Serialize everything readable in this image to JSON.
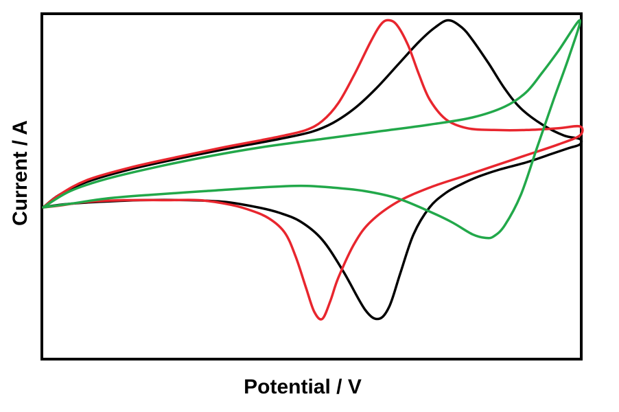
{
  "chart_data": {
    "type": "line",
    "title": "",
    "xlabel": "Potential / V",
    "ylabel": "Current / A",
    "xlim": [
      0,
      1
    ],
    "ylim": [
      -1,
      1
    ],
    "grid": false,
    "legend": "none",
    "series": [
      {
        "color": "#000000",
        "x": [
          0.0,
          0.03,
          0.08,
          0.16,
          0.25,
          0.35,
          0.44,
          0.5,
          0.54,
          0.58,
          0.62,
          0.66,
          0.7,
          0.73,
          0.755,
          0.78,
          0.8,
          0.83,
          0.86,
          0.89,
          0.93,
          0.97,
          1.0,
          1.0,
          0.98,
          0.95,
          0.9,
          0.85,
          0.81,
          0.78,
          0.75,
          0.72,
          0.69,
          0.665,
          0.645,
          0.625,
          0.6,
          0.56,
          0.52,
          0.48,
          0.44,
          0.4,
          0.34,
          0.27,
          0.18,
          0.1,
          0.05,
          0.02,
          0.0
        ],
        "y": [
          0.0,
          0.07,
          0.14,
          0.21,
          0.27,
          0.33,
          0.38,
          0.42,
          0.47,
          0.55,
          0.66,
          0.79,
          0.92,
          1.0,
          1.04,
          1.0,
          0.93,
          0.8,
          0.66,
          0.55,
          0.46,
          0.4,
          0.38,
          0.35,
          0.33,
          0.3,
          0.25,
          0.21,
          0.17,
          0.13,
          0.08,
          0.0,
          -0.15,
          -0.37,
          -0.55,
          -0.62,
          -0.57,
          -0.36,
          -0.18,
          -0.08,
          -0.03,
          0.0,
          0.03,
          0.04,
          0.04,
          0.03,
          0.02,
          0.01,
          0.0
        ]
      },
      {
        "color": "#e8262e",
        "x": [
          0.0,
          0.03,
          0.08,
          0.16,
          0.25,
          0.33,
          0.4,
          0.45,
          0.49,
          0.52,
          0.55,
          0.58,
          0.61,
          0.63,
          0.645,
          0.66,
          0.68,
          0.7,
          0.72,
          0.75,
          0.79,
          0.84,
          0.9,
          0.96,
          1.0,
          1.0,
          0.96,
          0.9,
          0.84,
          0.78,
          0.72,
          0.66,
          0.61,
          0.58,
          0.55,
          0.535,
          0.52,
          0.505,
          0.49,
          0.47,
          0.45,
          0.42,
          0.38,
          0.34,
          0.29,
          0.23,
          0.15,
          0.08,
          0.03,
          0.0
        ],
        "y": [
          0.0,
          0.07,
          0.15,
          0.22,
          0.28,
          0.33,
          0.37,
          0.4,
          0.43,
          0.48,
          0.58,
          0.74,
          0.92,
          1.02,
          1.04,
          1.01,
          0.9,
          0.74,
          0.6,
          0.49,
          0.44,
          0.43,
          0.43,
          0.44,
          0.45,
          0.4,
          0.35,
          0.29,
          0.23,
          0.17,
          0.11,
          0.03,
          -0.08,
          -0.2,
          -0.39,
          -0.52,
          -0.62,
          -0.58,
          -0.45,
          -0.27,
          -0.14,
          -0.06,
          -0.01,
          0.02,
          0.04,
          0.04,
          0.04,
          0.03,
          0.01,
          0.0
        ]
      },
      {
        "color": "#22a84a",
        "x": [
          0.0,
          0.05,
          0.12,
          0.22,
          0.32,
          0.42,
          0.52,
          0.62,
          0.72,
          0.8,
          0.86,
          0.9,
          0.93,
          0.96,
          1.0,
          0.98,
          0.95,
          0.92,
          0.89,
          0.86,
          0.84,
          0.825,
          0.8,
          0.76,
          0.71,
          0.66,
          0.6,
          0.54,
          0.48,
          0.4,
          0.3,
          0.2,
          0.12,
          0.05,
          0.0
        ],
        "y": [
          0.0,
          0.09,
          0.16,
          0.23,
          0.29,
          0.34,
          0.38,
          0.42,
          0.46,
          0.5,
          0.56,
          0.64,
          0.75,
          0.87,
          1.04,
          0.84,
          0.59,
          0.33,
          0.07,
          -0.1,
          -0.16,
          -0.17,
          -0.15,
          -0.08,
          -0.01,
          0.05,
          0.09,
          0.11,
          0.12,
          0.11,
          0.09,
          0.07,
          0.05,
          0.02,
          0.0
        ]
      }
    ]
  }
}
